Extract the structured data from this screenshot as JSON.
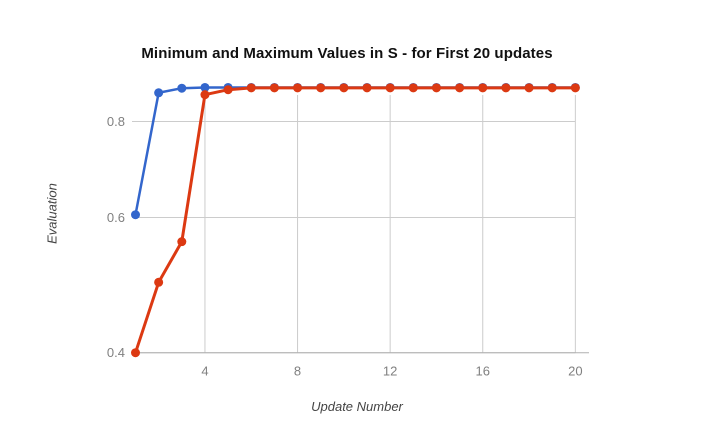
{
  "chart_data": {
    "type": "line",
    "title": "Minimum and Maximum Values in S - for First 20 updates",
    "xlabel": "Update Number",
    "ylabel": "Evaluation",
    "x": [
      1,
      2,
      3,
      4,
      5,
      6,
      7,
      8,
      9,
      10,
      11,
      12,
      13,
      14,
      15,
      16,
      17,
      18,
      19,
      20
    ],
    "series": [
      {
        "name": "blue",
        "color": "#3366cc",
        "line_width": 2.5,
        "marker_radius": 4.5,
        "values": [
          0.605,
          0.872,
          0.884,
          0.886,
          0.886,
          0.886,
          0.886,
          0.886,
          0.886,
          0.886,
          0.886,
          0.886,
          0.886,
          0.886,
          0.886,
          0.886,
          0.886,
          0.886,
          0.886,
          0.886
        ]
      },
      {
        "name": "red",
        "color": "#dc3912",
        "line_width": 3,
        "marker_radius": 4.5,
        "values": [
          0.4,
          0.494,
          0.558,
          0.867,
          0.88,
          0.885,
          0.885,
          0.885,
          0.885,
          0.885,
          0.885,
          0.885,
          0.885,
          0.885,
          0.885,
          0.885,
          0.885,
          0.885,
          0.885,
          0.885
        ]
      }
    ],
    "y_axis": {
      "scale": "log",
      "ticks": [
        0.4,
        0.6,
        0.8
      ],
      "tick_labels": [
        "0.4",
        "0.6",
        "0.8"
      ],
      "range": [
        0.4,
        0.91
      ]
    },
    "x_axis": {
      "ticks": [
        4,
        8,
        12,
        16,
        20
      ],
      "tick_labels": [
        "4",
        "8",
        "12",
        "16",
        "20"
      ],
      "range": [
        1,
        20
      ]
    },
    "legend": "none",
    "grid": true,
    "colors": {
      "background": "#ffffff",
      "gridline": "#cccccc",
      "axis_line": "#b0b0b0",
      "tick_label": "#808080",
      "title": "#111111",
      "axis_title": "#444444"
    }
  }
}
